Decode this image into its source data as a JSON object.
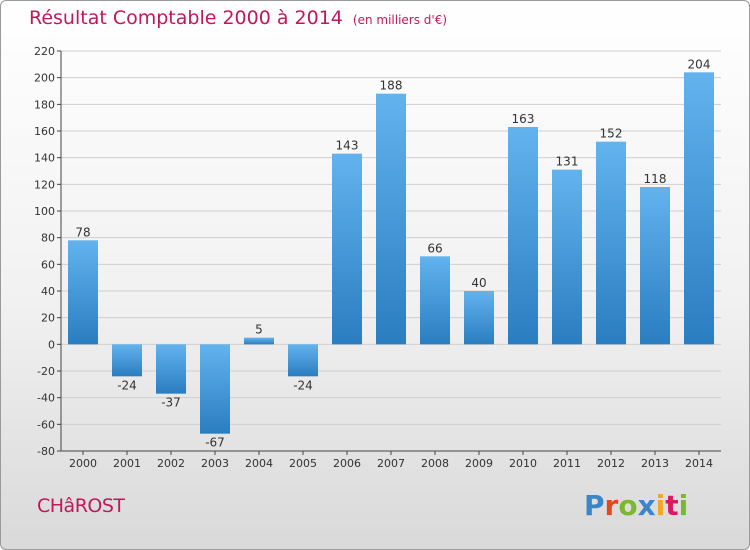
{
  "header": {
    "title": "Résultat Comptable 2000 à 2014",
    "unit": "(en milliers d'€)"
  },
  "footer": {
    "commune": "CHâROST",
    "logo": "Proxiti"
  },
  "colors": {
    "title": "#c2185b",
    "bar_light": "#62b3ee",
    "bar_dark": "#2a7dc0",
    "logo_letters": [
      "#3a86c8",
      "#e8461c",
      "#7cb82f",
      "#3a86c8",
      "#f5a623",
      "#d81b60",
      "#7cb82f"
    ]
  },
  "chart_data": {
    "type": "bar",
    "title": "Résultat Comptable 2000 à 2014 (en milliers d'€)",
    "xlabel": "",
    "ylabel": "",
    "categories": [
      "2000",
      "2001",
      "2002",
      "2003",
      "2004",
      "2005",
      "2006",
      "2007",
      "2008",
      "2009",
      "2010",
      "2011",
      "2012",
      "2013",
      "2014"
    ],
    "values": [
      78,
      -24,
      -37,
      -67,
      5,
      -24,
      143,
      188,
      66,
      40,
      163,
      131,
      152,
      118,
      204
    ],
    "ylim": [
      -80,
      220
    ],
    "yticks": [
      -80,
      -60,
      -40,
      -20,
      0,
      20,
      40,
      60,
      80,
      100,
      120,
      140,
      160,
      180,
      200,
      220
    ],
    "grid": true,
    "legend": "none"
  }
}
